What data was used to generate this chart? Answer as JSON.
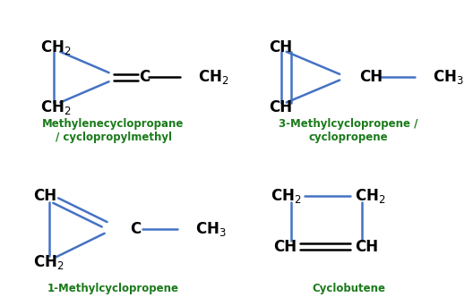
{
  "bg_color": "#ffffff",
  "bond_color": "#4472c4",
  "text_color": "#000000",
  "label_color": "#1a7a1a",
  "structures": [
    {
      "name": "Methylenecyclopropane\n/ cyclopropylmethyl"
    },
    {
      "name": "3-Methylcyclopropene /\ncyclopropene"
    },
    {
      "name": "1-Methylcyclopropene"
    },
    {
      "name": "Cyclobutene"
    }
  ],
  "fs": 12,
  "lfs": 8.5
}
